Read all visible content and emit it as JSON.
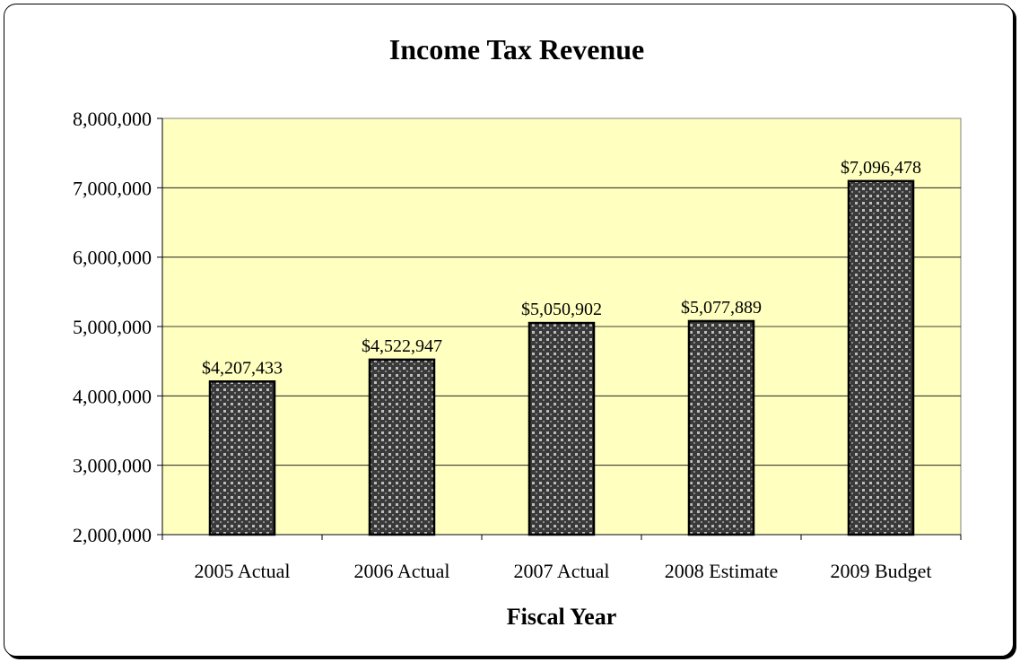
{
  "chart_data": {
    "type": "bar",
    "title": "Income Tax Revenue",
    "xlabel": "Fiscal Year",
    "ylabel": "",
    "categories": [
      "2005 Actual",
      "2006 Actual",
      "2007 Actual",
      "2008 Estimate",
      "2009 Budget"
    ],
    "series": [
      {
        "values": [
          4207433,
          4522947,
          5050902,
          5077889,
          7096478
        ],
        "data_labels": [
          "$4,207,433",
          "$4,522,947",
          "$5,050,902",
          "$5,077,889",
          "$7,096,478"
        ]
      }
    ],
    "ylim": [
      2000000,
      8000000
    ],
    "yticks": [
      2000000,
      3000000,
      4000000,
      5000000,
      6000000,
      7000000,
      8000000
    ],
    "ytick_labels": [
      "2,000,000",
      "3,000,000",
      "4,000,000",
      "5,000,000",
      "6,000,000",
      "7,000,000",
      "8,000,000"
    ],
    "grid": true,
    "legend": "none",
    "colors": {
      "plot_background": "#ffffc0",
      "bar_dark": "#3a3a3a",
      "bar_light": "#bdbdbd",
      "gridline": "#000000"
    }
  }
}
